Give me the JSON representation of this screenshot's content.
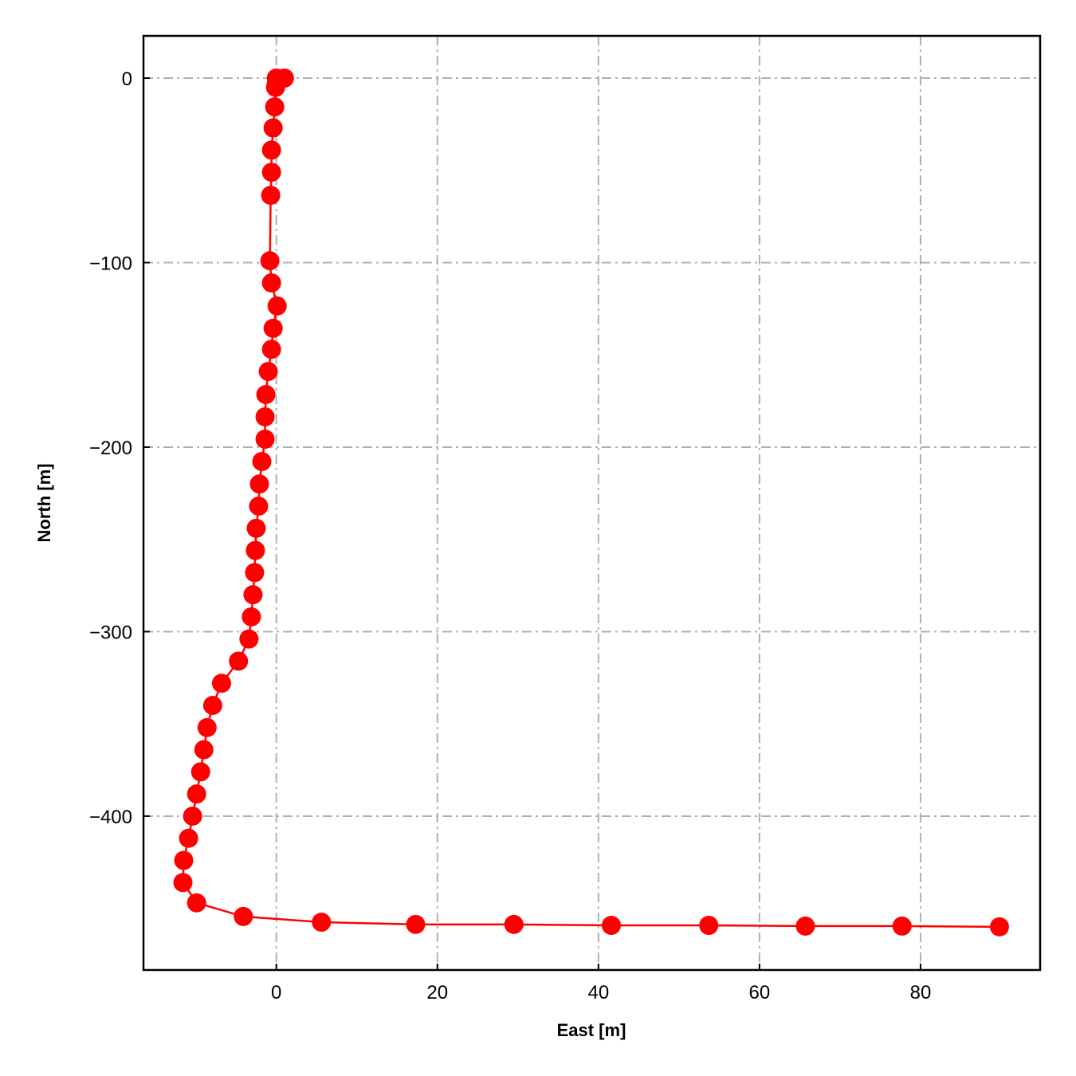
{
  "chart_data": {
    "type": "line",
    "x_label": "East [m]",
    "y_label": "North [m]",
    "color": "#ff0000",
    "grid": true,
    "xlim": [
      -16.5,
      94.85
    ],
    "ylim": [
      -483.4,
      22.9
    ],
    "xticks": [
      0,
      20,
      40,
      60,
      80
    ],
    "yticks": [
      {
        "value": -400,
        "label": "−400"
      },
      {
        "value": -300,
        "label": "−300"
      },
      {
        "value": -200,
        "label": "−200"
      },
      {
        "value": -100,
        "label": "−100"
      },
      0
    ],
    "x": [
      0,
      1,
      0,
      -0.1,
      -0.2,
      -0.4,
      -0.6,
      -0.6,
      -0.7,
      -0.8,
      -0.6,
      0.1,
      -0.4,
      -0.6,
      -1,
      -1.3,
      -1.4,
      -1.4,
      -1.8,
      -2.1,
      -2.2,
      -2.5,
      -2.6,
      -2.7,
      -2.9,
      -3.1,
      -3.4,
      -4.7,
      -6.8,
      -7.9,
      -8.6,
      -9,
      -9.4,
      -9.9,
      -10.4,
      -10.9,
      -11.5,
      -11.6,
      -9.9,
      -4.1,
      5.6,
      17.3,
      29.5,
      41.6,
      53.7,
      65.7,
      77.7,
      89.8
    ],
    "values": [
      0,
      0,
      -3,
      -5,
      -15.6,
      -27,
      -39,
      -51,
      -63.5,
      -99,
      -111,
      -123.5,
      -135.6,
      -147,
      -159,
      -171.5,
      -183.6,
      -195.7,
      -207.8,
      -220,
      -232,
      -244,
      -256,
      -268,
      -280,
      -292,
      -304,
      -316,
      -328,
      -340,
      -352,
      -364,
      -376,
      -388,
      -400,
      -412,
      -424,
      -436,
      -447,
      -454.4,
      -457.5,
      -458.7,
      -458.7,
      -459.2,
      -459.2,
      -459.6,
      -459.6,
      -460
    ]
  }
}
